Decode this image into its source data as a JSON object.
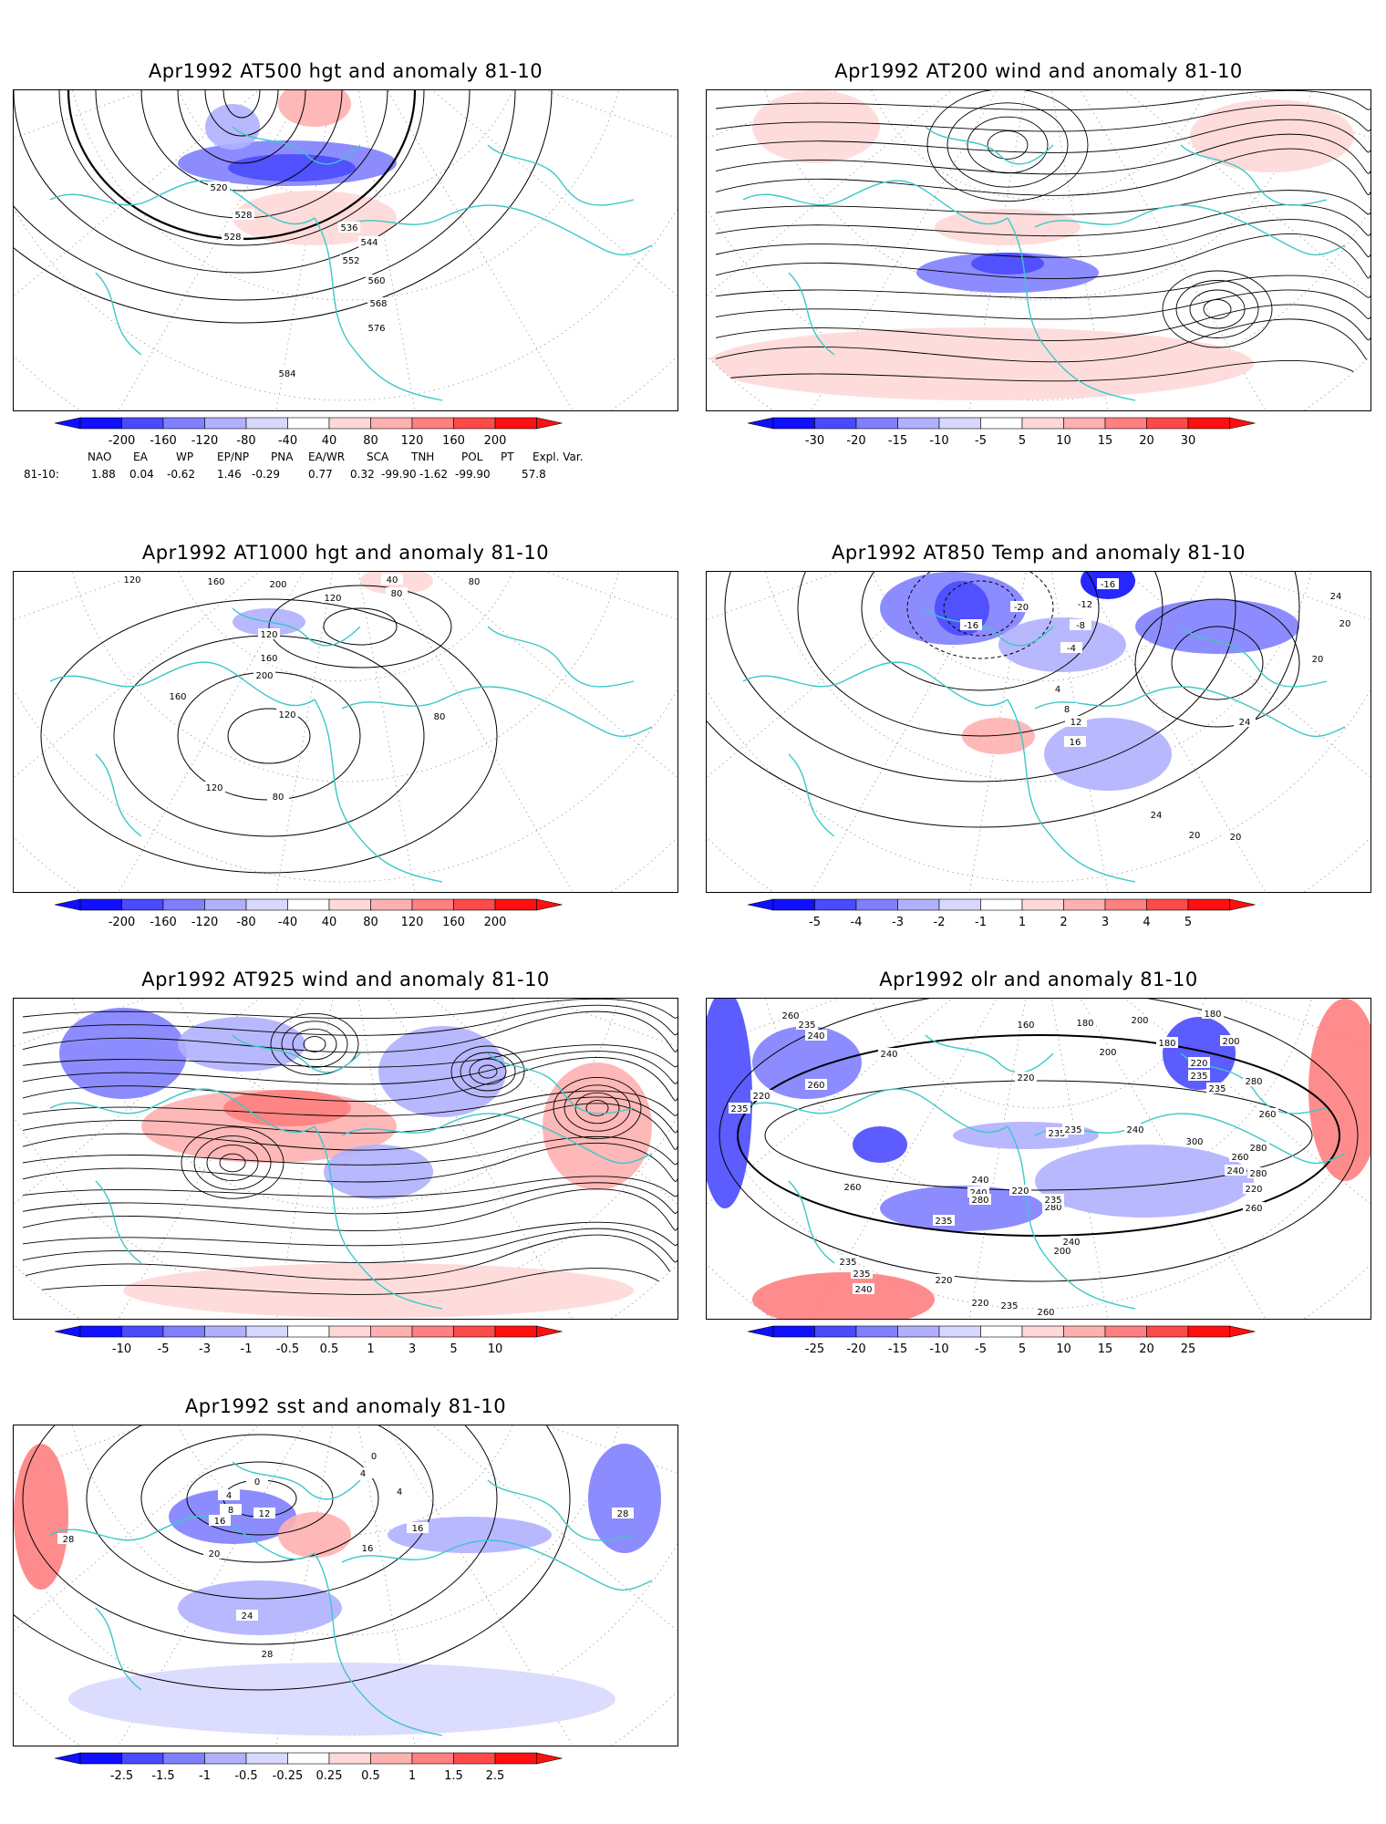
{
  "colors": {
    "coastline": "#3cc8c8",
    "contour": "#000000",
    "dotted_grid": "#9a9a9a",
    "blue_scale": [
      "#1010ff",
      "#4a4aff",
      "#8080ff",
      "#b0b0ff",
      "#d8d8ff"
    ],
    "red_scale": [
      "#ffd8d8",
      "#ffb0b0",
      "#ff8080",
      "#ff4a4a",
      "#ff1010"
    ]
  },
  "panels": [
    {
      "id": "at500",
      "title": "Apr1992 AT500 hgt and anomaly 81-10",
      "colorbar_labels": [
        "-200",
        "-160",
        "-120",
        "-80",
        "-40",
        "40",
        "80",
        "120",
        "160",
        "200"
      ],
      "contour_labels": [
        "520",
        "528",
        "528",
        "536",
        "544",
        "552",
        "560",
        "568",
        "576",
        "584"
      ]
    },
    {
      "id": "at200",
      "title": "Apr1992 AT200 wind and anomaly 81-10",
      "colorbar_labels": [
        "-30",
        "-20",
        "-15",
        "-10",
        "-5",
        "5",
        "10",
        "15",
        "20",
        "30"
      ],
      "contour_labels": []
    },
    {
      "id": "at1000",
      "title": "Apr1992 AT1000 hgt and anomaly 81-10",
      "colorbar_labels": [
        "-200",
        "-160",
        "-120",
        "-80",
        "-40",
        "40",
        "80",
        "120",
        "160",
        "200"
      ],
      "contour_labels": [
        "120",
        "160",
        "200",
        "120",
        "80",
        "40",
        "80",
        "120",
        "160",
        "200",
        "160",
        "120",
        "120",
        "80",
        "80"
      ]
    },
    {
      "id": "at850",
      "title": "Apr1992 AT850 Temp and anomaly 81-10",
      "colorbar_labels": [
        "-5",
        "-4",
        "-3",
        "-2",
        "-1",
        "1",
        "2",
        "3",
        "4",
        "5"
      ],
      "contour_labels": [
        "-16",
        "-12",
        "-20",
        "-16",
        "-8",
        "-4",
        "24",
        "20",
        "20",
        "4",
        "8",
        "12",
        "16",
        "24",
        "24",
        "20",
        "20"
      ]
    },
    {
      "id": "at925",
      "title": "Apr1992 AT925 wind and anomaly 81-10",
      "colorbar_labels": [
        "-10",
        "-5",
        "-3",
        "-1",
        "-0.5",
        "0.5",
        "1",
        "3",
        "5",
        "10"
      ],
      "contour_labels": []
    },
    {
      "id": "olr",
      "title": "Apr1992 olr and anomaly 81-10",
      "colorbar_labels": [
        "-25",
        "-20",
        "-15",
        "-10",
        "-5",
        "5",
        "10",
        "15",
        "20",
        "25"
      ],
      "contour_labels": [
        "260",
        "235",
        "240",
        "160",
        "180",
        "200",
        "180",
        "200",
        "220",
        "260",
        "240",
        "180",
        "200",
        "220",
        "235",
        "235",
        "280",
        "220",
        "235",
        "260",
        "280",
        "235",
        "220",
        "235",
        "240",
        "300",
        "260",
        "280",
        "240",
        "220",
        "260",
        "240",
        "240",
        "280",
        "280",
        "235",
        "235",
        "260",
        "240",
        "200",
        "235",
        "235",
        "220",
        "240",
        "220",
        "235",
        "260"
      ]
    },
    {
      "id": "sst",
      "title": "Apr1992 sst and anomaly 81-10",
      "colorbar_labels": [
        "-2.5",
        "-1.5",
        "-1",
        "-0.5",
        "-0.25",
        "0.25",
        "0.5",
        "1",
        "1.5",
        "2.5"
      ],
      "contour_labels": [
        "0",
        "4",
        "4",
        "0",
        "4",
        "8",
        "12",
        "16",
        "20",
        "16",
        "16",
        "28",
        "28",
        "24",
        "28"
      ]
    }
  ],
  "teleconnections": {
    "headers": [
      "NAO",
      "EA",
      "WP",
      "EP/NP",
      "PNA",
      "EA/WR",
      "SCA",
      "TNH",
      "POL",
      "PT",
      "Expl. Var."
    ],
    "row_label": "81-10:",
    "values": [
      "1.88",
      "0.04",
      "-0.62",
      "1.46",
      "-0.29",
      "0.77",
      "0.32",
      "-99.90",
      "-1.62",
      "-99.90",
      "57.8"
    ]
  }
}
